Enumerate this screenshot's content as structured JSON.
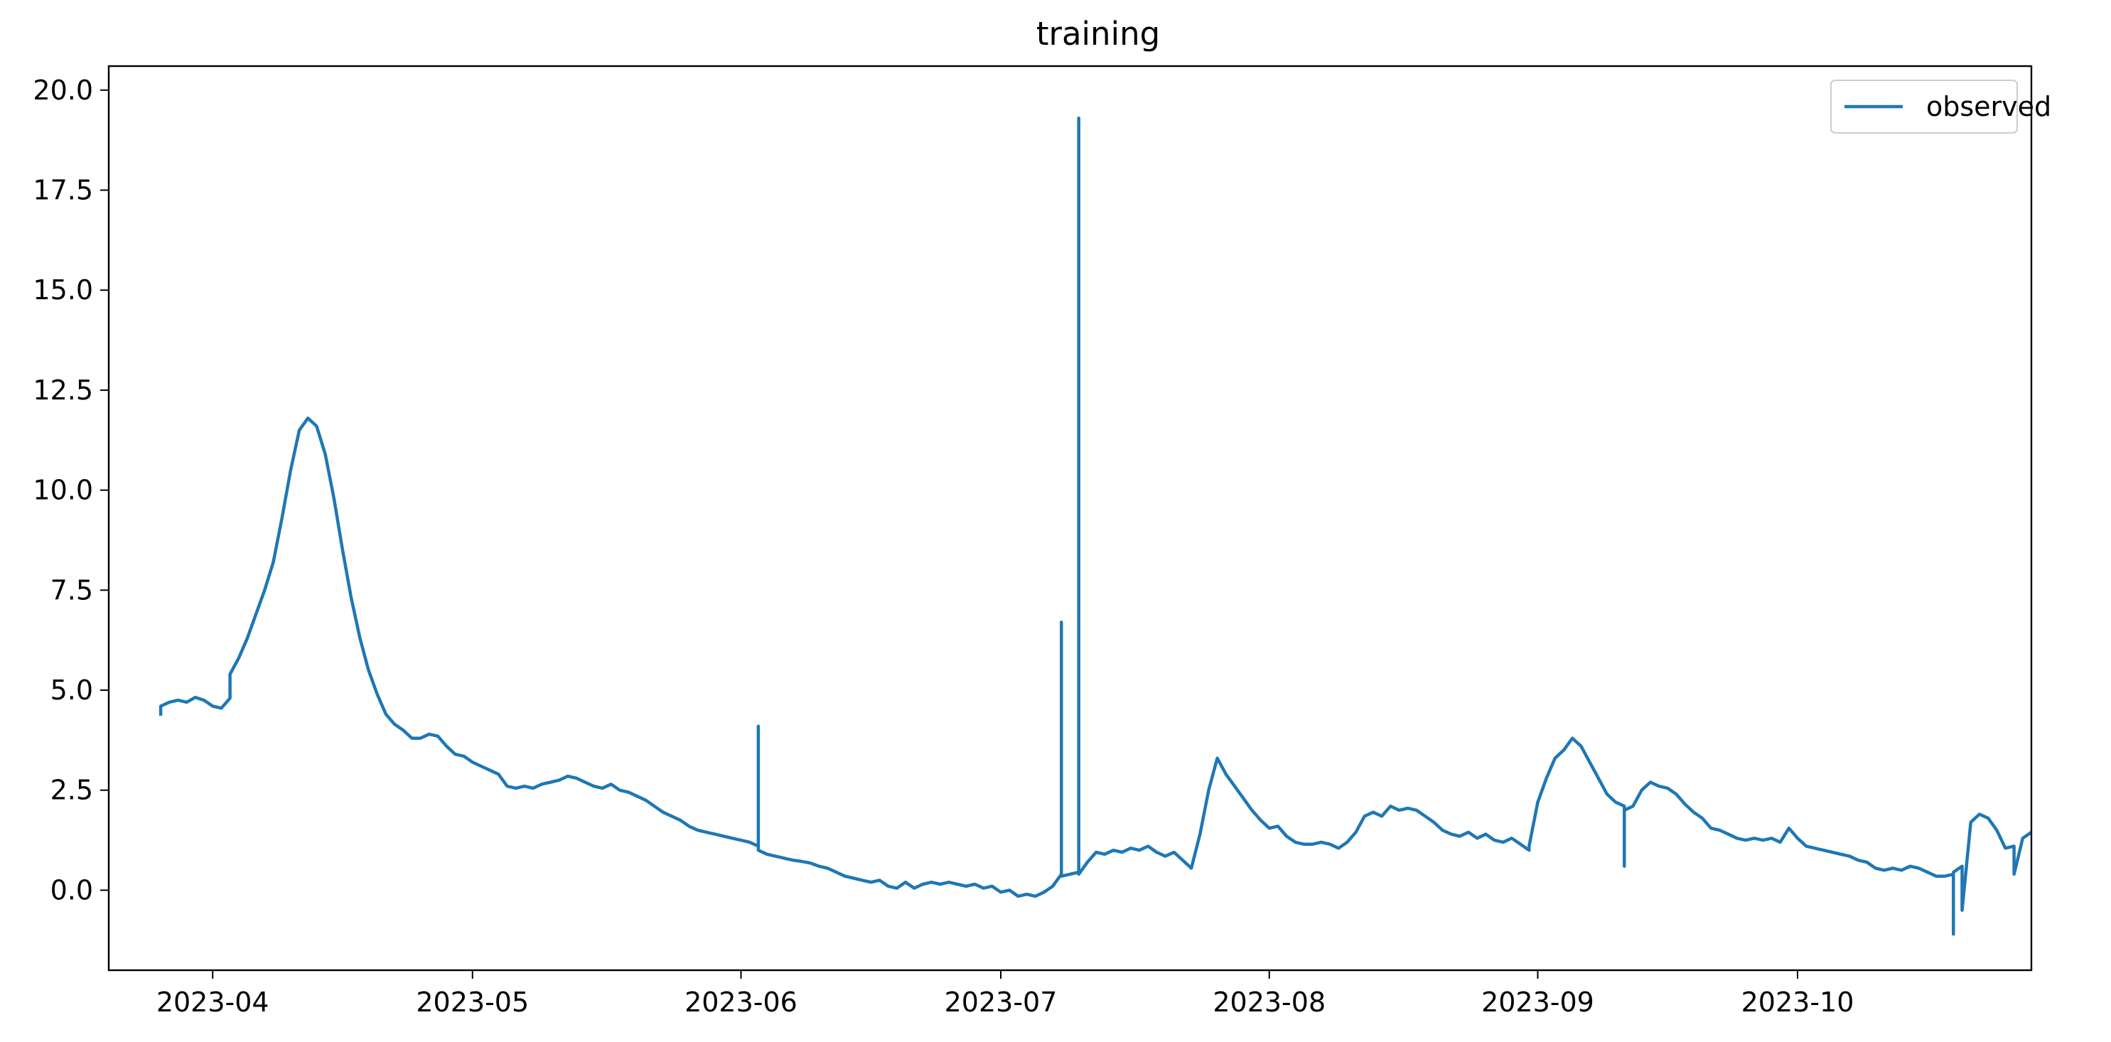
{
  "chart_data": {
    "type": "line",
    "title": "training",
    "xlabel": "",
    "ylabel": "",
    "x_axis_type": "date",
    "xlim": [
      "2023-03-20",
      "2023-10-28"
    ],
    "ylim": [
      -2.0,
      20.6
    ],
    "x_ticks": [
      "2023-04-01",
      "2023-05-01",
      "2023-06-01",
      "2023-07-01",
      "2023-08-01",
      "2023-09-01",
      "2023-10-01"
    ],
    "x_tick_labels": [
      "2023-04",
      "2023-05",
      "2023-06",
      "2023-07",
      "2023-08",
      "2023-09",
      "2023-10"
    ],
    "y_ticks": [
      0.0,
      2.5,
      5.0,
      7.5,
      10.0,
      12.5,
      15.0,
      17.5,
      20.0
    ],
    "y_tick_labels": [
      "0.0",
      "2.5",
      "5.0",
      "7.5",
      "10.0",
      "12.5",
      "15.0",
      "17.5",
      "20.0"
    ],
    "grid": false,
    "legend_position": "top-right",
    "series": [
      {
        "name": "observed",
        "color": "#1f77b4",
        "points": [
          [
            "2023-03-26",
            4.4
          ],
          [
            "2023-03-26",
            4.6
          ],
          [
            "2023-03-27",
            4.7
          ],
          [
            "2023-03-28",
            4.75
          ],
          [
            "2023-03-29",
            4.7
          ],
          [
            "2023-03-30",
            4.82
          ],
          [
            "2023-03-31",
            4.75
          ],
          [
            "2023-04-01",
            4.6
          ],
          [
            "2023-04-02",
            4.55
          ],
          [
            "2023-04-03",
            4.8
          ],
          [
            "2023-04-03",
            5.4
          ],
          [
            "2023-04-04",
            5.8
          ],
          [
            "2023-04-05",
            6.3
          ],
          [
            "2023-04-06",
            6.9
          ],
          [
            "2023-04-07",
            7.5
          ],
          [
            "2023-04-08",
            8.2
          ],
          [
            "2023-04-09",
            9.3
          ],
          [
            "2023-04-10",
            10.5
          ],
          [
            "2023-04-11",
            11.5
          ],
          [
            "2023-04-12",
            11.8
          ],
          [
            "2023-04-13",
            11.6
          ],
          [
            "2023-04-14",
            10.9
          ],
          [
            "2023-04-15",
            9.8
          ],
          [
            "2023-04-16",
            8.5
          ],
          [
            "2023-04-17",
            7.3
          ],
          [
            "2023-04-18",
            6.3
          ],
          [
            "2023-04-19",
            5.5
          ],
          [
            "2023-04-20",
            4.9
          ],
          [
            "2023-04-21",
            4.4
          ],
          [
            "2023-04-22",
            4.15
          ],
          [
            "2023-04-23",
            4.0
          ],
          [
            "2023-04-24",
            3.8
          ],
          [
            "2023-04-25",
            3.8
          ],
          [
            "2023-04-26",
            3.9
          ],
          [
            "2023-04-27",
            3.85
          ],
          [
            "2023-04-28",
            3.6
          ],
          [
            "2023-04-29",
            3.4
          ],
          [
            "2023-04-30",
            3.35
          ],
          [
            "2023-05-01",
            3.2
          ],
          [
            "2023-05-02",
            3.1
          ],
          [
            "2023-05-03",
            3.0
          ],
          [
            "2023-05-04",
            2.9
          ],
          [
            "2023-05-05",
            2.6
          ],
          [
            "2023-05-06",
            2.55
          ],
          [
            "2023-05-07",
            2.6
          ],
          [
            "2023-05-08",
            2.55
          ],
          [
            "2023-05-09",
            2.65
          ],
          [
            "2023-05-10",
            2.7
          ],
          [
            "2023-05-11",
            2.75
          ],
          [
            "2023-05-12",
            2.85
          ],
          [
            "2023-05-13",
            2.8
          ],
          [
            "2023-05-14",
            2.7
          ],
          [
            "2023-05-15",
            2.6
          ],
          [
            "2023-05-16",
            2.55
          ],
          [
            "2023-05-17",
            2.65
          ],
          [
            "2023-05-18",
            2.5
          ],
          [
            "2023-05-19",
            2.45
          ],
          [
            "2023-05-20",
            2.35
          ],
          [
            "2023-05-21",
            2.25
          ],
          [
            "2023-05-22",
            2.1
          ],
          [
            "2023-05-23",
            1.95
          ],
          [
            "2023-05-24",
            1.85
          ],
          [
            "2023-05-25",
            1.75
          ],
          [
            "2023-05-26",
            1.6
          ],
          [
            "2023-05-27",
            1.5
          ],
          [
            "2023-05-28",
            1.45
          ],
          [
            "2023-05-29",
            1.4
          ],
          [
            "2023-05-30",
            1.35
          ],
          [
            "2023-05-31",
            1.3
          ],
          [
            "2023-06-01",
            1.25
          ],
          [
            "2023-06-02",
            1.2
          ],
          [
            "2023-06-03",
            1.1
          ],
          [
            "2023-06-03",
            4.1
          ],
          [
            "2023-06-03",
            1.0
          ],
          [
            "2023-06-04",
            0.9
          ],
          [
            "2023-06-05",
            0.85
          ],
          [
            "2023-06-06",
            0.8
          ],
          [
            "2023-06-07",
            0.75
          ],
          [
            "2023-06-08",
            0.72
          ],
          [
            "2023-06-09",
            0.68
          ],
          [
            "2023-06-10",
            0.6
          ],
          [
            "2023-06-11",
            0.55
          ],
          [
            "2023-06-12",
            0.45
          ],
          [
            "2023-06-13",
            0.35
          ],
          [
            "2023-06-14",
            0.3
          ],
          [
            "2023-06-15",
            0.25
          ],
          [
            "2023-06-16",
            0.2
          ],
          [
            "2023-06-17",
            0.25
          ],
          [
            "2023-06-18",
            0.1
          ],
          [
            "2023-06-19",
            0.05
          ],
          [
            "2023-06-20",
            0.2
          ],
          [
            "2023-06-21",
            0.05
          ],
          [
            "2023-06-22",
            0.15
          ],
          [
            "2023-06-23",
            0.2
          ],
          [
            "2023-06-24",
            0.15
          ],
          [
            "2023-06-25",
            0.2
          ],
          [
            "2023-06-26",
            0.15
          ],
          [
            "2023-06-27",
            0.1
          ],
          [
            "2023-06-28",
            0.15
          ],
          [
            "2023-06-29",
            0.05
          ],
          [
            "2023-06-30",
            0.1
          ],
          [
            "2023-07-01",
            -0.05
          ],
          [
            "2023-07-02",
            0.0
          ],
          [
            "2023-07-03",
            -0.15
          ],
          [
            "2023-07-04",
            -0.1
          ],
          [
            "2023-07-05",
            -0.15
          ],
          [
            "2023-07-06",
            -0.05
          ],
          [
            "2023-07-07",
            0.1
          ],
          [
            "2023-07-08",
            0.4
          ],
          [
            "2023-07-08",
            6.7
          ],
          [
            "2023-07-08",
            0.35
          ],
          [
            "2023-07-09",
            0.4
          ],
          [
            "2023-07-10",
            0.45
          ],
          [
            "2023-07-10",
            19.3
          ],
          [
            "2023-07-10",
            0.4
          ],
          [
            "2023-07-11",
            0.7
          ],
          [
            "2023-07-12",
            0.95
          ],
          [
            "2023-07-13",
            0.9
          ],
          [
            "2023-07-14",
            1.0
          ],
          [
            "2023-07-15",
            0.95
          ],
          [
            "2023-07-16",
            1.05
          ],
          [
            "2023-07-17",
            1.0
          ],
          [
            "2023-07-18",
            1.1
          ],
          [
            "2023-07-19",
            0.95
          ],
          [
            "2023-07-20",
            0.85
          ],
          [
            "2023-07-21",
            0.95
          ],
          [
            "2023-07-22",
            0.75
          ],
          [
            "2023-07-23",
            0.55
          ],
          [
            "2023-07-24",
            1.4
          ],
          [
            "2023-07-25",
            2.5
          ],
          [
            "2023-07-26",
            3.3
          ],
          [
            "2023-07-27",
            2.9
          ],
          [
            "2023-07-28",
            2.6
          ],
          [
            "2023-07-29",
            2.3
          ],
          [
            "2023-07-30",
            2.0
          ],
          [
            "2023-07-31",
            1.75
          ],
          [
            "2023-08-01",
            1.55
          ],
          [
            "2023-08-02",
            1.6
          ],
          [
            "2023-08-03",
            1.35
          ],
          [
            "2023-08-04",
            1.2
          ],
          [
            "2023-08-05",
            1.15
          ],
          [
            "2023-08-06",
            1.15
          ],
          [
            "2023-08-07",
            1.2
          ],
          [
            "2023-08-08",
            1.15
          ],
          [
            "2023-08-09",
            1.05
          ],
          [
            "2023-08-10",
            1.2
          ],
          [
            "2023-08-11",
            1.45
          ],
          [
            "2023-08-12",
            1.85
          ],
          [
            "2023-08-13",
            1.95
          ],
          [
            "2023-08-14",
            1.85
          ],
          [
            "2023-08-15",
            2.1
          ],
          [
            "2023-08-16",
            2.0
          ],
          [
            "2023-08-17",
            2.05
          ],
          [
            "2023-08-18",
            2.0
          ],
          [
            "2023-08-19",
            1.85
          ],
          [
            "2023-08-20",
            1.7
          ],
          [
            "2023-08-21",
            1.5
          ],
          [
            "2023-08-22",
            1.4
          ],
          [
            "2023-08-23",
            1.35
          ],
          [
            "2023-08-24",
            1.45
          ],
          [
            "2023-08-25",
            1.3
          ],
          [
            "2023-08-26",
            1.4
          ],
          [
            "2023-08-27",
            1.25
          ],
          [
            "2023-08-28",
            1.2
          ],
          [
            "2023-08-29",
            1.3
          ],
          [
            "2023-08-30",
            1.15
          ],
          [
            "2023-08-31",
            1.0
          ],
          [
            "2023-08-31",
            1.1
          ],
          [
            "2023-09-01",
            2.2
          ],
          [
            "2023-09-02",
            2.8
          ],
          [
            "2023-09-03",
            3.3
          ],
          [
            "2023-09-04",
            3.5
          ],
          [
            "2023-09-05",
            3.8
          ],
          [
            "2023-09-06",
            3.6
          ],
          [
            "2023-09-07",
            3.2
          ],
          [
            "2023-09-08",
            2.8
          ],
          [
            "2023-09-09",
            2.4
          ],
          [
            "2023-09-10",
            2.2
          ],
          [
            "2023-09-11",
            2.1
          ],
          [
            "2023-09-11",
            0.6
          ],
          [
            "2023-09-11",
            2.0
          ],
          [
            "2023-09-12",
            2.1
          ],
          [
            "2023-09-13",
            2.5
          ],
          [
            "2023-09-14",
            2.7
          ],
          [
            "2023-09-15",
            2.6
          ],
          [
            "2023-09-16",
            2.55
          ],
          [
            "2023-09-17",
            2.4
          ],
          [
            "2023-09-18",
            2.15
          ],
          [
            "2023-09-19",
            1.95
          ],
          [
            "2023-09-20",
            1.8
          ],
          [
            "2023-09-21",
            1.55
          ],
          [
            "2023-09-22",
            1.5
          ],
          [
            "2023-09-23",
            1.4
          ],
          [
            "2023-09-24",
            1.3
          ],
          [
            "2023-09-25",
            1.25
          ],
          [
            "2023-09-26",
            1.3
          ],
          [
            "2023-09-27",
            1.25
          ],
          [
            "2023-09-28",
            1.3
          ],
          [
            "2023-09-29",
            1.2
          ],
          [
            "2023-09-30",
            1.55
          ],
          [
            "2023-10-01",
            1.3
          ],
          [
            "2023-10-02",
            1.1
          ],
          [
            "2023-10-03",
            1.05
          ],
          [
            "2023-10-04",
            1.0
          ],
          [
            "2023-10-05",
            0.95
          ],
          [
            "2023-10-06",
            0.9
          ],
          [
            "2023-10-07",
            0.85
          ],
          [
            "2023-10-08",
            0.75
          ],
          [
            "2023-10-09",
            0.7
          ],
          [
            "2023-10-10",
            0.55
          ],
          [
            "2023-10-11",
            0.5
          ],
          [
            "2023-10-12",
            0.55
          ],
          [
            "2023-10-13",
            0.5
          ],
          [
            "2023-10-14",
            0.6
          ],
          [
            "2023-10-15",
            0.55
          ],
          [
            "2023-10-16",
            0.45
          ],
          [
            "2023-10-17",
            0.35
          ],
          [
            "2023-10-18",
            0.35
          ],
          [
            "2023-10-19",
            0.4
          ],
          [
            "2023-10-19",
            -1.1
          ],
          [
            "2023-10-19",
            0.45
          ],
          [
            "2023-10-20",
            0.6
          ],
          [
            "2023-10-20",
            -0.5
          ],
          [
            "2023-10-21",
            1.7
          ],
          [
            "2023-10-22",
            1.9
          ],
          [
            "2023-10-23",
            1.8
          ],
          [
            "2023-10-24",
            1.5
          ],
          [
            "2023-10-25",
            1.05
          ],
          [
            "2023-10-26",
            1.1
          ],
          [
            "2023-10-26",
            0.4
          ],
          [
            "2023-10-27",
            1.3
          ],
          [
            "2023-10-28",
            1.45
          ],
          [
            "2023-10-29",
            1.4
          ]
        ]
      }
    ]
  }
}
